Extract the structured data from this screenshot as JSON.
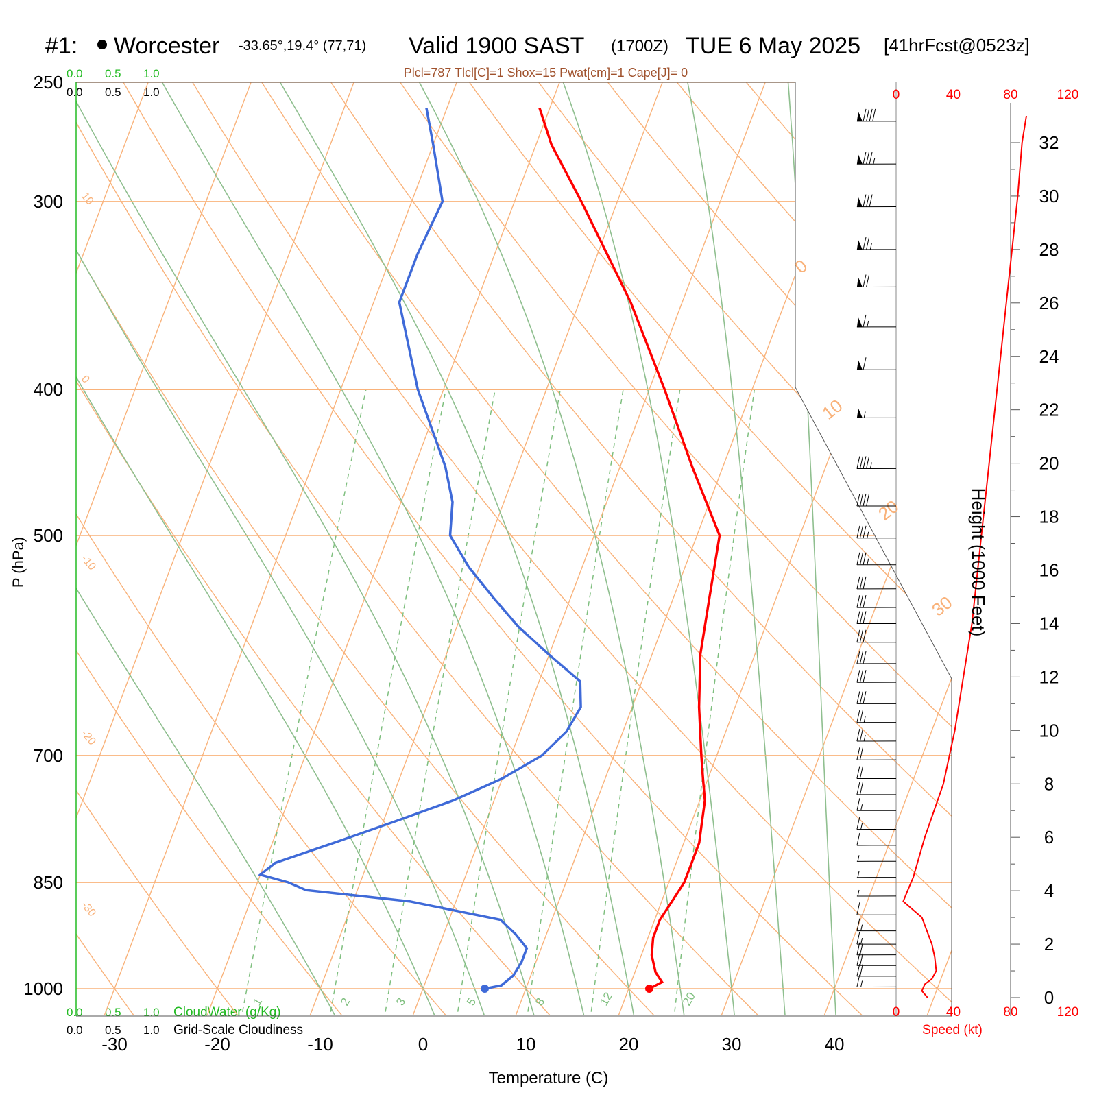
{
  "header": {
    "station_num": "#1:",
    "station_name": "Worcester",
    "location": "-33.65°,19.4° (77,71)",
    "valid": "Valid 1900 SAST",
    "zulu": "(1700Z)",
    "date": "TUE 6 May 2025",
    "fcst": "[41hrFcst@0523z]"
  },
  "indices": "Plcl=787 Tlcl[C]=1 Shox=15 Pwat[cm]=1 Cape[J]= 0",
  "scales": {
    "cloud_water": [
      "0.0",
      "0.5",
      "1.0"
    ],
    "cloudiness": [
      "0.0",
      "0.5",
      "1.0"
    ],
    "cloud_water_label": "CloudWater (g/Kg)",
    "cloudiness_label": "Grid-Scale Cloudiness"
  },
  "colors": {
    "temperature": "#ff0000",
    "dewpoint": "#3f6ad8",
    "isotherm": "#f9b27a",
    "dry_adiabat": "#f9b27a",
    "moist_adiabat": "#8fbf8f",
    "mixing_ratio": "#7fbf7f",
    "cloud_green": "#22bb22",
    "index_brown": "#a0522d"
  },
  "chart_data": {
    "type": "line",
    "title": "Valid 1900 SAST (1700Z) TUE 6 May 2025",
    "xlabel": "Temperature (C)",
    "ylabel": "P (hPa)",
    "ylabel_right": "Height (1000 Feet)",
    "speed_label": "Speed (kt)",
    "temperature_ticks": [
      "-30",
      "-20",
      "-10",
      "0",
      "10",
      "20",
      "30",
      "40"
    ],
    "pressure_ticks": [
      "250",
      "300",
      "400",
      "500",
      "700",
      "850",
      "1000"
    ],
    "height_ticks": [
      "0",
      "2",
      "4",
      "6",
      "8",
      "10",
      "12",
      "14",
      "16",
      "18",
      "20",
      "22",
      "24",
      "26",
      "28",
      "30",
      "32"
    ],
    "speed_ticks": [
      "0",
      "40",
      "80",
      "120"
    ],
    "isotherm_labels": [
      "10",
      "0",
      "-10",
      "-20",
      "-30"
    ],
    "skewed_labels": [
      "0",
      "10",
      "20",
      "30"
    ],
    "mixing_ratio_labels": [
      "1",
      "2",
      "3",
      "5",
      "8",
      "12",
      "20"
    ],
    "series": [
      {
        "name": "Temperature",
        "values": [
          [
            1000,
            22.0
          ],
          [
            990,
            23.0
          ],
          [
            975,
            22.0
          ],
          [
            950,
            21.0
          ],
          [
            925,
            20.5
          ],
          [
            900,
            20.5
          ],
          [
            875,
            21.0
          ],
          [
            850,
            21.5
          ],
          [
            825,
            21.5
          ],
          [
            800,
            21.5
          ],
          [
            775,
            21.0
          ],
          [
            750,
            20.5
          ],
          [
            725,
            19.5
          ],
          [
            700,
            18.5
          ],
          [
            650,
            16.5
          ],
          [
            600,
            14.7
          ],
          [
            550,
            13.5
          ],
          [
            500,
            12.2
          ],
          [
            450,
            7.0
          ],
          [
            400,
            1.5
          ],
          [
            350,
            -5.0
          ],
          [
            300,
            -13.5
          ],
          [
            275,
            -18.5
          ],
          [
            260,
            -21.0
          ]
        ]
      },
      {
        "name": "Dewpoint",
        "values": [
          [
            1000,
            6.0
          ],
          [
            995,
            7.5
          ],
          [
            980,
            8.3
          ],
          [
            960,
            8.6
          ],
          [
            940,
            8.6
          ],
          [
            920,
            7.0
          ],
          [
            900,
            5.0
          ],
          [
            875,
            -4.5
          ],
          [
            860,
            -15.0
          ],
          [
            850,
            -17.0
          ],
          [
            840,
            -20.0
          ],
          [
            825,
            -19.0
          ],
          [
            800,
            -14.0
          ],
          [
            775,
            -9.0
          ],
          [
            750,
            -4.0
          ],
          [
            725,
            0.0
          ],
          [
            700,
            3.0
          ],
          [
            675,
            4.5
          ],
          [
            650,
            5.0
          ],
          [
            625,
            4.0
          ],
          [
            600,
            0.0
          ],
          [
            575,
            -4.0
          ],
          [
            550,
            -7.5
          ],
          [
            525,
            -11.0
          ],
          [
            500,
            -14.0
          ],
          [
            475,
            -15.0
          ],
          [
            450,
            -17.0
          ],
          [
            400,
            -22.5
          ],
          [
            350,
            -27.5
          ],
          [
            325,
            -27.5
          ],
          [
            300,
            -27.0
          ],
          [
            275,
            -30.0
          ],
          [
            260,
            -32.0
          ]
        ]
      },
      {
        "name": "Wind speed",
        "values": [
          [
            0.0,
            22
          ],
          [
            0.25,
            18
          ],
          [
            0.5,
            20
          ],
          [
            0.7,
            25
          ],
          [
            1.0,
            28
          ],
          [
            1.5,
            27
          ],
          [
            2.0,
            25
          ],
          [
            3.0,
            18
          ],
          [
            3.6,
            5
          ],
          [
            4.0,
            8
          ],
          [
            4.5,
            12
          ],
          [
            6.0,
            20
          ],
          [
            8.0,
            33
          ],
          [
            10.0,
            41
          ],
          [
            12.0,
            47
          ],
          [
            14.0,
            53
          ],
          [
            16.0,
            57
          ],
          [
            18.0,
            61
          ],
          [
            20.0,
            65
          ],
          [
            22.0,
            69
          ],
          [
            24.0,
            73
          ],
          [
            26.0,
            77
          ],
          [
            28.0,
            81
          ],
          [
            30.0,
            85
          ],
          [
            32.0,
            88
          ],
          [
            33.0,
            91
          ]
        ]
      }
    ],
    "ylim": [
      1000,
      250
    ],
    "xlim": [
      -33,
      36
    ],
    "height_range": [
      0,
      33
    ],
    "speed_range": [
      0,
      120
    ],
    "wind_barbs": [
      {
        "h": 32.8,
        "spd": 90
      },
      {
        "h": 31.2,
        "spd": 85
      },
      {
        "h": 29.6,
        "spd": 82
      },
      {
        "h": 28.0,
        "spd": 78
      },
      {
        "h": 26.6,
        "spd": 73
      },
      {
        "h": 25.1,
        "spd": 68
      },
      {
        "h": 23.5,
        "spd": 62
      },
      {
        "h": 21.7,
        "spd": 58
      },
      {
        "h": 19.8,
        "spd": 48
      },
      {
        "h": 18.4,
        "spd": 40
      },
      {
        "h": 17.2,
        "spd": 38
      },
      {
        "h": 16.2,
        "spd": 36
      },
      {
        "h": 15.3,
        "spd": 34
      },
      {
        "h": 14.6,
        "spd": 32
      },
      {
        "h": 14.0,
        "spd": 32
      },
      {
        "h": 13.3,
        "spd": 30
      },
      {
        "h": 12.5,
        "spd": 30
      },
      {
        "h": 11.8,
        "spd": 30
      },
      {
        "h": 11.0,
        "spd": 30
      },
      {
        "h": 10.3,
        "spd": 28
      },
      {
        "h": 9.6,
        "spd": 26
      },
      {
        "h": 8.9,
        "spd": 24
      },
      {
        "h": 8.2,
        "spd": 22
      },
      {
        "h": 7.6,
        "spd": 20
      },
      {
        "h": 7.0,
        "spd": 18
      },
      {
        "h": 6.3,
        "spd": 15
      },
      {
        "h": 5.7,
        "spd": 12
      },
      {
        "h": 5.1,
        "spd": 8
      },
      {
        "h": 4.5,
        "spd": 8
      },
      {
        "h": 3.8,
        "spd": 6
      },
      {
        "h": 3.1,
        "spd": 10
      },
      {
        "h": 2.5,
        "spd": 15
      },
      {
        "h": 2.0,
        "spd": 18
      },
      {
        "h": 1.6,
        "spd": 20
      },
      {
        "h": 1.2,
        "spd": 22
      },
      {
        "h": 0.8,
        "spd": 20
      },
      {
        "h": 0.4,
        "spd": 18
      }
    ]
  }
}
